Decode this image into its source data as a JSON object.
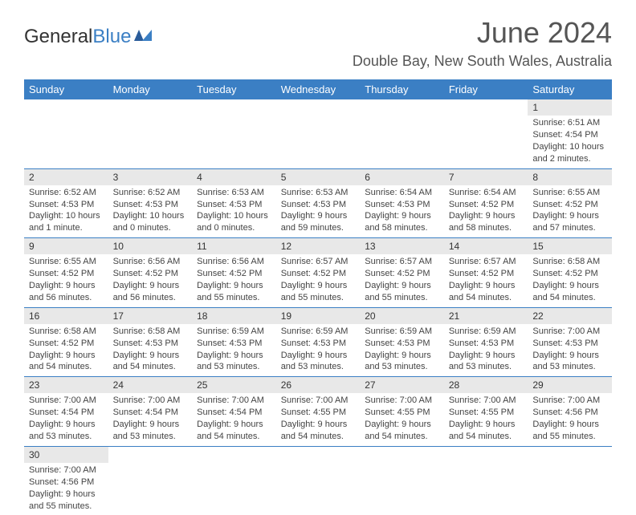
{
  "logo": {
    "text1": "General",
    "text2": "Blue"
  },
  "title": "June 2024",
  "location": "Double Bay, New South Wales, Australia",
  "weekdays": [
    "Sunday",
    "Monday",
    "Tuesday",
    "Wednesday",
    "Thursday",
    "Friday",
    "Saturday"
  ],
  "colors": {
    "header_bg": "#3b7fc4",
    "header_text": "#ffffff",
    "daynum_bg": "#e8e8e8",
    "border": "#3b7fc4",
    "text": "#444444"
  },
  "weeks": [
    {
      "days": [
        null,
        null,
        null,
        null,
        null,
        null,
        {
          "n": "1",
          "sunrise": "Sunrise: 6:51 AM",
          "sunset": "Sunset: 4:54 PM",
          "daylight": "Daylight: 10 hours and 2 minutes."
        }
      ]
    },
    {
      "days": [
        {
          "n": "2",
          "sunrise": "Sunrise: 6:52 AM",
          "sunset": "Sunset: 4:53 PM",
          "daylight": "Daylight: 10 hours and 1 minute."
        },
        {
          "n": "3",
          "sunrise": "Sunrise: 6:52 AM",
          "sunset": "Sunset: 4:53 PM",
          "daylight": "Daylight: 10 hours and 0 minutes."
        },
        {
          "n": "4",
          "sunrise": "Sunrise: 6:53 AM",
          "sunset": "Sunset: 4:53 PM",
          "daylight": "Daylight: 10 hours and 0 minutes."
        },
        {
          "n": "5",
          "sunrise": "Sunrise: 6:53 AM",
          "sunset": "Sunset: 4:53 PM",
          "daylight": "Daylight: 9 hours and 59 minutes."
        },
        {
          "n": "6",
          "sunrise": "Sunrise: 6:54 AM",
          "sunset": "Sunset: 4:53 PM",
          "daylight": "Daylight: 9 hours and 58 minutes."
        },
        {
          "n": "7",
          "sunrise": "Sunrise: 6:54 AM",
          "sunset": "Sunset: 4:52 PM",
          "daylight": "Daylight: 9 hours and 58 minutes."
        },
        {
          "n": "8",
          "sunrise": "Sunrise: 6:55 AM",
          "sunset": "Sunset: 4:52 PM",
          "daylight": "Daylight: 9 hours and 57 minutes."
        }
      ]
    },
    {
      "days": [
        {
          "n": "9",
          "sunrise": "Sunrise: 6:55 AM",
          "sunset": "Sunset: 4:52 PM",
          "daylight": "Daylight: 9 hours and 56 minutes."
        },
        {
          "n": "10",
          "sunrise": "Sunrise: 6:56 AM",
          "sunset": "Sunset: 4:52 PM",
          "daylight": "Daylight: 9 hours and 56 minutes."
        },
        {
          "n": "11",
          "sunrise": "Sunrise: 6:56 AM",
          "sunset": "Sunset: 4:52 PM",
          "daylight": "Daylight: 9 hours and 55 minutes."
        },
        {
          "n": "12",
          "sunrise": "Sunrise: 6:57 AM",
          "sunset": "Sunset: 4:52 PM",
          "daylight": "Daylight: 9 hours and 55 minutes."
        },
        {
          "n": "13",
          "sunrise": "Sunrise: 6:57 AM",
          "sunset": "Sunset: 4:52 PM",
          "daylight": "Daylight: 9 hours and 55 minutes."
        },
        {
          "n": "14",
          "sunrise": "Sunrise: 6:57 AM",
          "sunset": "Sunset: 4:52 PM",
          "daylight": "Daylight: 9 hours and 54 minutes."
        },
        {
          "n": "15",
          "sunrise": "Sunrise: 6:58 AM",
          "sunset": "Sunset: 4:52 PM",
          "daylight": "Daylight: 9 hours and 54 minutes."
        }
      ]
    },
    {
      "days": [
        {
          "n": "16",
          "sunrise": "Sunrise: 6:58 AM",
          "sunset": "Sunset: 4:52 PM",
          "daylight": "Daylight: 9 hours and 54 minutes."
        },
        {
          "n": "17",
          "sunrise": "Sunrise: 6:58 AM",
          "sunset": "Sunset: 4:53 PM",
          "daylight": "Daylight: 9 hours and 54 minutes."
        },
        {
          "n": "18",
          "sunrise": "Sunrise: 6:59 AM",
          "sunset": "Sunset: 4:53 PM",
          "daylight": "Daylight: 9 hours and 53 minutes."
        },
        {
          "n": "19",
          "sunrise": "Sunrise: 6:59 AM",
          "sunset": "Sunset: 4:53 PM",
          "daylight": "Daylight: 9 hours and 53 minutes."
        },
        {
          "n": "20",
          "sunrise": "Sunrise: 6:59 AM",
          "sunset": "Sunset: 4:53 PM",
          "daylight": "Daylight: 9 hours and 53 minutes."
        },
        {
          "n": "21",
          "sunrise": "Sunrise: 6:59 AM",
          "sunset": "Sunset: 4:53 PM",
          "daylight": "Daylight: 9 hours and 53 minutes."
        },
        {
          "n": "22",
          "sunrise": "Sunrise: 7:00 AM",
          "sunset": "Sunset: 4:53 PM",
          "daylight": "Daylight: 9 hours and 53 minutes."
        }
      ]
    },
    {
      "days": [
        {
          "n": "23",
          "sunrise": "Sunrise: 7:00 AM",
          "sunset": "Sunset: 4:54 PM",
          "daylight": "Daylight: 9 hours and 53 minutes."
        },
        {
          "n": "24",
          "sunrise": "Sunrise: 7:00 AM",
          "sunset": "Sunset: 4:54 PM",
          "daylight": "Daylight: 9 hours and 53 minutes."
        },
        {
          "n": "25",
          "sunrise": "Sunrise: 7:00 AM",
          "sunset": "Sunset: 4:54 PM",
          "daylight": "Daylight: 9 hours and 54 minutes."
        },
        {
          "n": "26",
          "sunrise": "Sunrise: 7:00 AM",
          "sunset": "Sunset: 4:55 PM",
          "daylight": "Daylight: 9 hours and 54 minutes."
        },
        {
          "n": "27",
          "sunrise": "Sunrise: 7:00 AM",
          "sunset": "Sunset: 4:55 PM",
          "daylight": "Daylight: 9 hours and 54 minutes."
        },
        {
          "n": "28",
          "sunrise": "Sunrise: 7:00 AM",
          "sunset": "Sunset: 4:55 PM",
          "daylight": "Daylight: 9 hours and 54 minutes."
        },
        {
          "n": "29",
          "sunrise": "Sunrise: 7:00 AM",
          "sunset": "Sunset: 4:56 PM",
          "daylight": "Daylight: 9 hours and 55 minutes."
        }
      ]
    },
    {
      "days": [
        {
          "n": "30",
          "sunrise": "Sunrise: 7:00 AM",
          "sunset": "Sunset: 4:56 PM",
          "daylight": "Daylight: 9 hours and 55 minutes."
        },
        null,
        null,
        null,
        null,
        null,
        null
      ]
    }
  ]
}
